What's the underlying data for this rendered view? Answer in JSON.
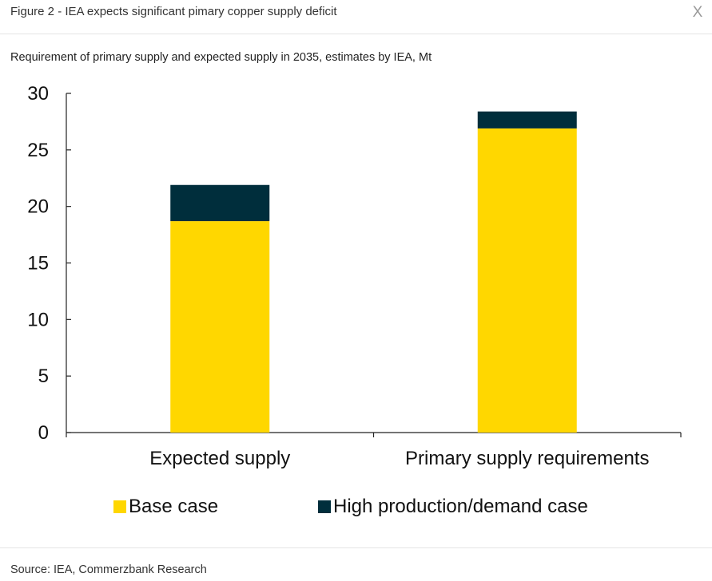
{
  "header": {
    "title": "Figure 2 - IEA expects significant pimary copper supply deficit",
    "close_label": "X"
  },
  "subtitle": "Requirement of primary supply and expected supply in 2035, estimates by IEA, Mt",
  "source": "Source: IEA, Commerzbank Research",
  "colors": {
    "base": "#FFD700",
    "high": "#002E3C",
    "axis": "#222222"
  },
  "chart_data": {
    "type": "bar",
    "stacked": true,
    "title": "",
    "xlabel": "",
    "ylabel": "",
    "categories": [
      "Expected supply",
      "Primary supply requirements"
    ],
    "series": [
      {
        "name": "Base case",
        "values": [
          18.7,
          26.9
        ]
      },
      {
        "name": "High production/demand case",
        "values": [
          3.2,
          1.5
        ]
      }
    ],
    "ylim": [
      0,
      30
    ],
    "yticks": [
      0,
      5,
      10,
      15,
      20,
      25,
      30
    ],
    "grid": false,
    "legend_position": "bottom"
  }
}
